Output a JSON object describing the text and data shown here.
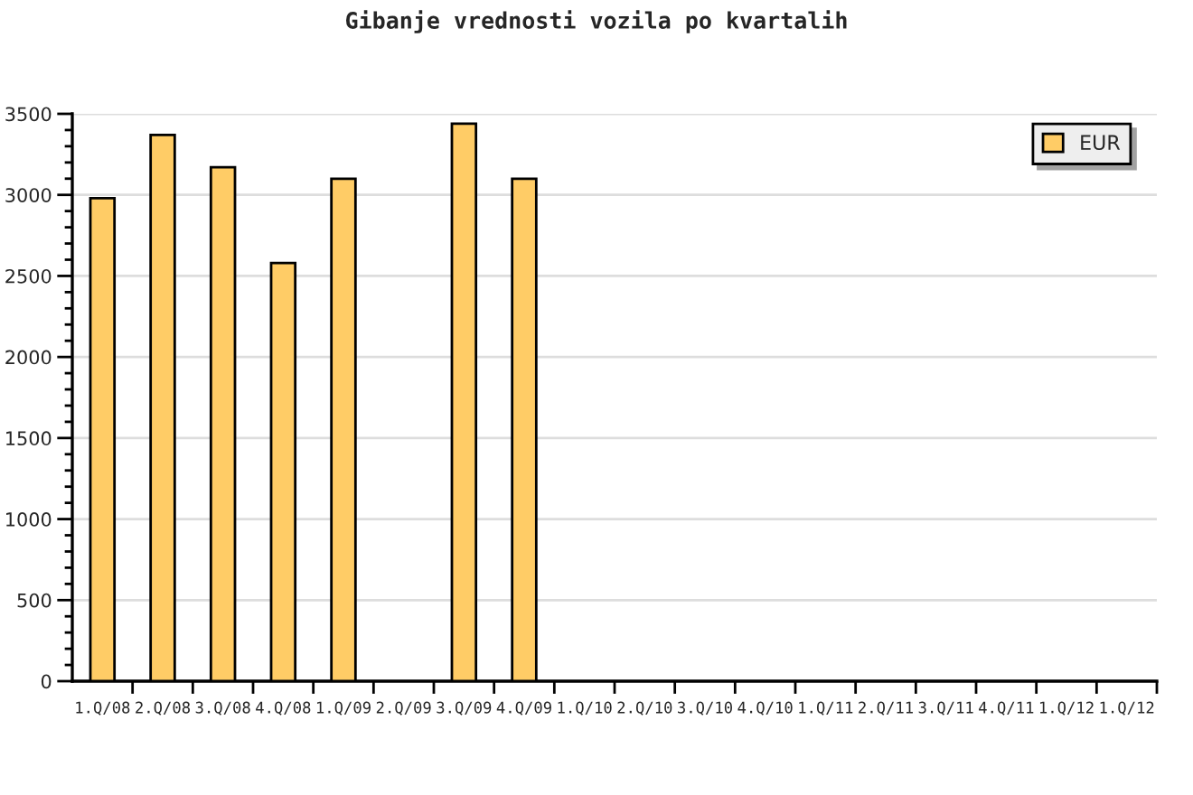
{
  "chart_data": {
    "type": "bar",
    "title": "Gibanje vrednosti vozila po kvartalih",
    "categories": [
      "1.Q/08",
      "2.Q/08",
      "3.Q/08",
      "4.Q/08",
      "1.Q/09",
      "2.Q/09",
      "3.Q/09",
      "4.Q/09",
      "1.Q/10",
      "2.Q/10",
      "3.Q/10",
      "4.Q/10",
      "1.Q/11",
      "2.Q/11",
      "3.Q/11",
      "4.Q/11",
      "1.Q/12",
      "1.Q/12"
    ],
    "series": [
      {
        "name": "EUR",
        "color": "#ffcc66",
        "values": [
          2980,
          3370,
          3170,
          2580,
          3100,
          null,
          3440,
          3100,
          null,
          null,
          null,
          null,
          null,
          null,
          null,
          null,
          null,
          null
        ]
      }
    ],
    "ylim": [
      0,
      3500
    ],
    "yticks": [
      0,
      500,
      1000,
      1500,
      2000,
      2500,
      3000,
      3500
    ],
    "grid": "y",
    "legend": "top right"
  }
}
